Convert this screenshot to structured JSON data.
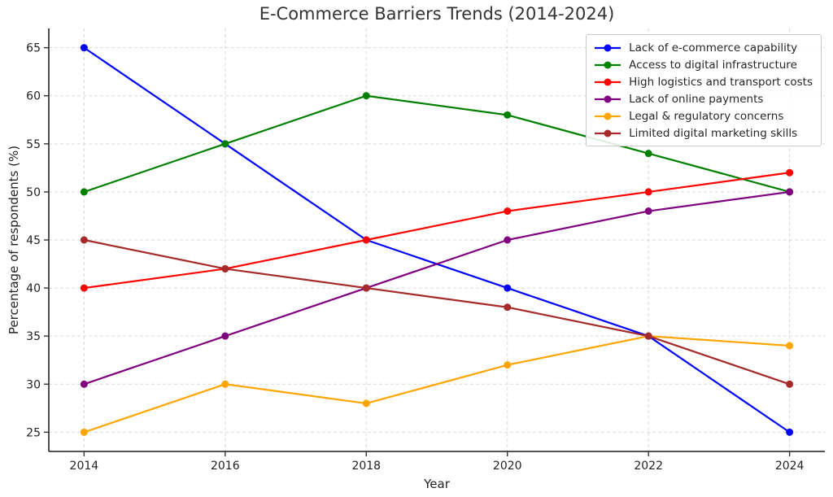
{
  "chart_data": {
    "type": "line",
    "title": "E-Commerce Barriers Trends (2014-2024)",
    "xlabel": "Year",
    "ylabel": "Percentage of respondents (%)",
    "x": [
      2014,
      2016,
      2018,
      2020,
      2022,
      2024
    ],
    "series": [
      {
        "name": "Lack of e-commerce capability",
        "color": "#0000ff",
        "values": [
          65,
          55,
          45,
          40,
          35,
          25
        ]
      },
      {
        "name": "Access to digital infrastructure",
        "color": "#008000",
        "values": [
          50,
          55,
          60,
          58,
          54,
          50
        ]
      },
      {
        "name": "High logistics and transport costs",
        "color": "#ff0000",
        "values": [
          40,
          42,
          45,
          48,
          50,
          52
        ]
      },
      {
        "name": "Lack of online payments",
        "color": "#800080",
        "values": [
          30,
          35,
          40,
          45,
          48,
          50
        ]
      },
      {
        "name": "Legal & regulatory concerns",
        "color": "#ffa500",
        "values": [
          25,
          30,
          28,
          32,
          35,
          34
        ]
      },
      {
        "name": "Limited digital marketing skills",
        "color": "#a52a2a",
        "values": [
          45,
          42,
          40,
          38,
          35,
          30
        ]
      }
    ],
    "xticks": [
      2014,
      2016,
      2018,
      2020,
      2022,
      2024
    ],
    "yticks": [
      25,
      30,
      35,
      40,
      45,
      50,
      55,
      60,
      65
    ],
    "xlim": [
      2013.5,
      2024.5
    ],
    "ylim": [
      23,
      67
    ],
    "grid": true,
    "grid_style": "dashed",
    "legend_position": "upper right",
    "style": {
      "grid_color": "#d9d9d9",
      "spine_color": "#3a3a3a",
      "tick_color": "#333333",
      "marker_radius": 4.5,
      "line_width": 2.2
    }
  }
}
